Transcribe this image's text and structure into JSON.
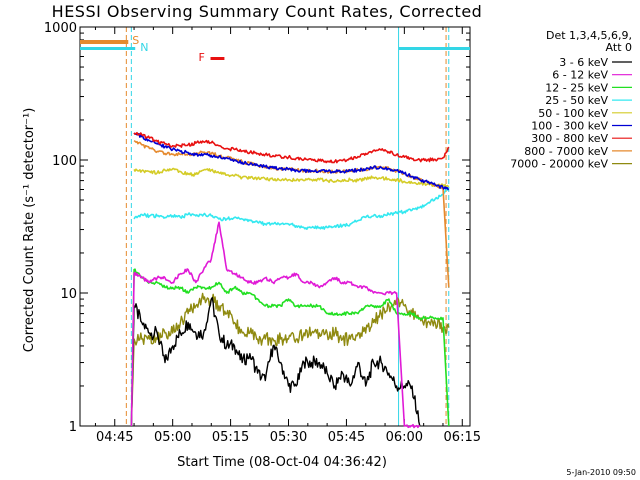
{
  "chart_data": {
    "type": "line",
    "title": "HESSI Observing Summary Count Rates, Corrected",
    "xlabel": "Start Time (08-Oct-04 04:36:42)",
    "ylabel": "Corrected Count Rate (s⁻¹ detector⁻¹)",
    "y_scale": "log",
    "ylim": [
      1,
      1000
    ],
    "xlim_minutes": [
      0,
      101
    ],
    "x_ticks": [
      "04:45",
      "05:00",
      "05:15",
      "05:30",
      "05:45",
      "06:00",
      "06:15"
    ],
    "y_ticks": [
      "1",
      "10",
      "100",
      "1000"
    ],
    "legend_header": [
      "Det 1,3,4,5,6,9,",
      "Att 0"
    ],
    "legend_position": "right",
    "footer_date": "5-Jan-2010 09:50",
    "flags": [
      {
        "label": "S",
        "color": "#e58a2e"
      },
      {
        "label": "N",
        "color": "#33d6e6"
      },
      {
        "label": "F",
        "color": "#e81010"
      }
    ],
    "series": [
      {
        "name": "3 - 6 keV",
        "color": "#000000",
        "x": [
          13.3,
          14,
          16,
          18,
          20,
          22,
          24,
          26,
          28,
          30,
          32,
          34,
          36,
          38,
          40,
          42,
          44,
          46,
          48,
          50,
          52,
          54,
          56,
          58,
          60,
          62,
          64,
          66,
          68,
          70,
          72,
          74,
          76,
          78,
          80,
          82,
          84,
          86,
          88
        ],
        "y": [
          1,
          8,
          6,
          5,
          5,
          3,
          4,
          5,
          6,
          5,
          5,
          9,
          5,
          4,
          4,
          3,
          3.5,
          2.5,
          2.2,
          4,
          3,
          2,
          2,
          3,
          3,
          3,
          2.5,
          2,
          2.5,
          2,
          3,
          2,
          3,
          3,
          2.5,
          2,
          2,
          2,
          1
        ]
      },
      {
        "name": "6 - 12 keV",
        "color": "#e01ad6",
        "x": [
          13.3,
          14,
          16,
          18,
          20,
          22,
          24,
          26,
          28,
          30,
          32,
          34,
          36,
          38,
          40,
          42,
          44,
          46,
          48,
          50,
          52,
          54,
          56,
          58,
          60,
          62,
          64,
          66,
          68,
          70,
          72,
          74,
          76,
          78,
          80,
          82,
          84,
          86,
          88
        ],
        "y": [
          1,
          14,
          13,
          12,
          13,
          13,
          12,
          14,
          15,
          12,
          15,
          18,
          34,
          15,
          14,
          13,
          12,
          12,
          13,
          12,
          13,
          13,
          14,
          12,
          12,
          11,
          12,
          13,
          12,
          12,
          11,
          11,
          10,
          10,
          10,
          10,
          1,
          1,
          1
        ]
      },
      {
        "name": "12 - 25 keV",
        "color": "#22e022",
        "x": [
          13.3,
          14,
          16,
          18,
          20,
          22,
          24,
          26,
          28,
          30,
          32,
          34,
          36,
          38,
          40,
          42,
          44,
          46,
          48,
          50,
          52,
          54,
          56,
          58,
          60,
          62,
          64,
          66,
          68,
          70,
          72,
          74,
          76,
          78,
          80,
          82,
          84,
          86,
          88,
          90,
          92,
          94,
          95.5
        ],
        "y": [
          1,
          15,
          13,
          12,
          12,
          11,
          11,
          11,
          10,
          11,
          11,
          11,
          12,
          10,
          11,
          10,
          10,
          9,
          8,
          8,
          8,
          9,
          8,
          8,
          8,
          8,
          7,
          7,
          7,
          7,
          7,
          8,
          8,
          8,
          9,
          7,
          7,
          7,
          6.5,
          6.5,
          6.5,
          6.5,
          1
        ]
      },
      {
        "name": "25 - 50 keV",
        "color": "#33e8f0",
        "x": [
          14,
          16,
          18,
          20,
          22,
          24,
          26,
          28,
          30,
          32,
          34,
          36,
          38,
          40,
          42,
          44,
          46,
          48,
          50,
          52,
          54,
          56,
          58,
          60,
          62,
          64,
          66,
          68,
          70,
          72,
          74,
          76,
          78,
          80,
          82,
          84,
          86,
          88,
          90,
          92,
          94,
          95.5
        ],
        "y": [
          36,
          39,
          38,
          38,
          37,
          38,
          37,
          39,
          38,
          39,
          38,
          36,
          36,
          37,
          36,
          35,
          34,
          33,
          33,
          33,
          33,
          32,
          31,
          31,
          31,
          31,
          32,
          32,
          33,
          35,
          37,
          38,
          38,
          39,
          40,
          41,
          42,
          44,
          47,
          51,
          55,
          63
        ]
      },
      {
        "name": "50 - 100 keV",
        "color": "#d4cc28",
        "x": [
          14,
          16,
          18,
          20,
          22,
          24,
          26,
          28,
          30,
          32,
          34,
          36,
          38,
          40,
          42,
          44,
          46,
          48,
          50,
          52,
          54,
          56,
          58,
          60,
          62,
          64,
          66,
          68,
          70,
          72,
          74,
          76,
          78,
          80,
          82,
          84,
          86,
          88,
          90,
          92,
          94,
          95.5
        ],
        "y": [
          85,
          83,
          82,
          80,
          84,
          86,
          82,
          78,
          78,
          84,
          84,
          80,
          77,
          76,
          74,
          73,
          73,
          72,
          71,
          70,
          71,
          70,
          70,
          71,
          71,
          70,
          69,
          71,
          71,
          70,
          73,
          74,
          73,
          72,
          71,
          69,
          67,
          66,
          66,
          65,
          64,
          63
        ]
      },
      {
        "name": "100 - 300 keV",
        "color": "#0000d4",
        "x": [
          14,
          16,
          18,
          20,
          22,
          24,
          26,
          28,
          30,
          32,
          34,
          36,
          38,
          40,
          42,
          44,
          46,
          48,
          50,
          52,
          54,
          56,
          58,
          60,
          62,
          64,
          66,
          68,
          70,
          72,
          74,
          76,
          78,
          80,
          82,
          84,
          86,
          88,
          90,
          92,
          94,
          95.5
        ],
        "y": [
          160,
          150,
          140,
          132,
          126,
          120,
          116,
          114,
          110,
          110,
          108,
          106,
          104,
          100,
          96,
          93,
          91,
          89,
          87,
          86,
          85,
          84,
          83,
          83,
          83,
          82,
          82,
          82,
          83,
          84,
          85,
          88,
          88,
          86,
          84,
          79,
          75,
          71,
          68,
          65,
          62,
          60
        ]
      },
      {
        "name": "300 - 800 keV",
        "color": "#e81010",
        "x": [
          14,
          16,
          18,
          20,
          22,
          24,
          26,
          28,
          30,
          32,
          34,
          36,
          38,
          40,
          42,
          44,
          46,
          48,
          50,
          52,
          54,
          56,
          58,
          60,
          62,
          64,
          66,
          68,
          70,
          72,
          74,
          76,
          78,
          80,
          82,
          84,
          86,
          88,
          90,
          92,
          94,
          95.5
        ],
        "y": [
          160,
          155,
          146,
          138,
          132,
          128,
          128,
          130,
          134,
          137,
          135,
          128,
          122,
          120,
          117,
          114,
          112,
          110,
          108,
          106,
          105,
          103,
          101,
          100,
          99,
          98,
          98,
          99,
          102,
          106,
          112,
          118,
          119,
          115,
          110,
          105,
          102,
          100,
          100,
          101,
          104,
          125
        ]
      },
      {
        "name": "800 - 7000 keV",
        "color": "#e58a2e",
        "x": [
          14,
          16,
          18,
          20,
          22,
          24,
          26,
          28,
          30,
          32,
          34,
          36,
          38,
          40,
          42,
          44,
          46,
          48,
          50,
          52,
          54,
          56,
          58,
          60,
          62,
          64,
          66,
          68,
          70,
          72,
          74,
          76,
          78,
          80,
          82,
          84,
          86,
          88,
          90,
          92,
          94,
          95.5
        ],
        "y": [
          140,
          130,
          122,
          116,
          112,
          110,
          110,
          111,
          112,
          114,
          112,
          108,
          104,
          101,
          97,
          94,
          91,
          89,
          87,
          86,
          85,
          84,
          83,
          83,
          83,
          82,
          82,
          82,
          83,
          84,
          85,
          88,
          88,
          86,
          83,
          79,
          75,
          71,
          68,
          65,
          62,
          11
        ]
      },
      {
        "name": "7000 - 20000 keV",
        "color": "#8f8a10",
        "x": [
          13.3,
          14,
          16,
          18,
          20,
          22,
          24,
          26,
          28,
          30,
          32,
          34,
          36,
          38,
          40,
          42,
          44,
          46,
          48,
          50,
          52,
          54,
          56,
          58,
          60,
          62,
          64,
          66,
          68,
          70,
          72,
          74,
          76,
          78,
          80,
          82,
          84,
          86,
          88,
          90,
          92,
          94,
          95.5
        ],
        "y": [
          1,
          4.5,
          4.5,
          4.5,
          4.5,
          5,
          5,
          6,
          7,
          8,
          9,
          9,
          8,
          7,
          6,
          5,
          5,
          4.5,
          4.5,
          4.5,
          4.5,
          4.5,
          4.5,
          5,
          5,
          5,
          5,
          5,
          4.5,
          4.5,
          5,
          5,
          6,
          7,
          8,
          9,
          8,
          7,
          6.5,
          6,
          6,
          5.5,
          5.5
        ]
      }
    ]
  }
}
